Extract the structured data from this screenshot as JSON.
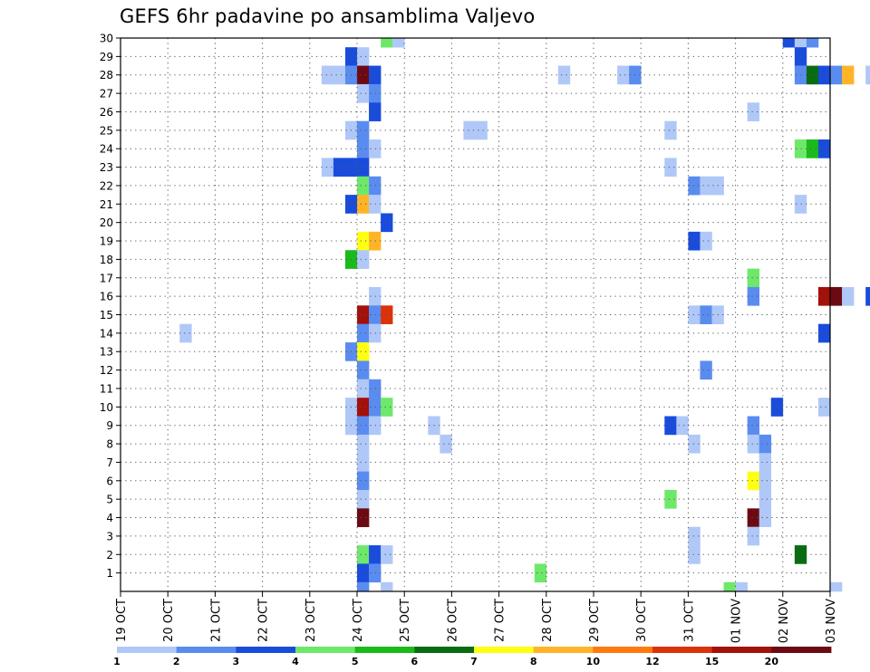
{
  "chart_data": {
    "type": "heatmap",
    "title": "GEFS 6hr padavine po ansamblima Valjevo",
    "xlabel": "",
    "ylabel": "",
    "x_ticks": [
      "19 OCT",
      "20 OCT",
      "21 OCT",
      "22 OCT",
      "23 OCT",
      "24 OCT",
      "25 OCT",
      "26 OCT",
      "27 OCT",
      "28 OCT",
      "29 OCT",
      "30 OCT",
      "31 OCT",
      "01 NOV",
      "02 NOV",
      "03 NOV"
    ],
    "y_ticks": [
      "1",
      "2",
      "3",
      "4",
      "5",
      "6",
      "7",
      "8",
      "9",
      "10",
      "11",
      "12",
      "13",
      "14",
      "15",
      "16",
      "17",
      "18",
      "19",
      "20",
      "21",
      "22",
      "23",
      "24",
      "25",
      "26",
      "27",
      "28",
      "29",
      "30"
    ],
    "ylim": [
      0,
      30
    ],
    "steps_per_day": 4,
    "grid": "dotted",
    "colorbar": {
      "tick_labels": [
        "1",
        "2",
        "3",
        "4",
        "5",
        "6",
        "7",
        "8",
        "10",
        "12",
        "15",
        "20"
      ],
      "colors": [
        "#b0c8f8",
        "#5a8cf0",
        "#1a4cdc",
        "#6ee86a",
        "#1aba1a",
        "#0a6c12",
        "#ffff14",
        "#ffb428",
        "#ff7a0c",
        "#dc320a",
        "#a4100a",
        "#6c0a14"
      ]
    },
    "cells": [
      [
        22,
        30,
        4
      ],
      [
        23,
        30,
        1
      ],
      [
        56,
        30,
        3
      ],
      [
        57,
        30,
        1
      ],
      [
        58,
        30,
        2
      ],
      [
        67,
        30,
        15
      ],
      [
        68,
        30,
        4
      ],
      [
        71,
        30,
        1
      ],
      [
        72,
        30,
        3
      ],
      [
        19,
        29,
        3
      ],
      [
        20,
        29,
        1
      ],
      [
        57,
        29,
        3
      ],
      [
        72,
        29,
        3
      ],
      [
        97,
        29,
        1
      ],
      [
        119,
        29,
        3
      ],
      [
        17,
        28,
        1
      ],
      [
        18,
        28,
        1
      ],
      [
        19,
        28,
        2
      ],
      [
        20,
        28,
        12
      ],
      [
        21,
        28,
        3
      ],
      [
        37,
        28,
        1
      ],
      [
        42,
        28,
        1
      ],
      [
        43,
        28,
        2
      ],
      [
        57,
        28,
        2
      ],
      [
        58,
        28,
        6
      ],
      [
        59,
        28,
        3
      ],
      [
        60,
        28,
        2
      ],
      [
        61,
        28,
        8
      ],
      [
        63,
        28,
        1
      ],
      [
        69,
        28,
        5
      ],
      [
        70,
        28,
        10
      ],
      [
        71,
        28,
        3
      ],
      [
        20,
        27,
        1
      ],
      [
        21,
        27,
        2
      ],
      [
        21,
        26,
        3
      ],
      [
        53,
        26,
        1
      ],
      [
        19,
        25,
        1
      ],
      [
        20,
        25,
        2
      ],
      [
        29,
        25,
        1
      ],
      [
        30,
        25,
        1
      ],
      [
        46,
        25,
        1
      ],
      [
        96,
        25,
        1
      ],
      [
        97,
        25,
        3
      ],
      [
        98,
        25,
        10
      ],
      [
        20,
        24,
        2
      ],
      [
        21,
        24,
        1
      ],
      [
        57,
        24,
        4
      ],
      [
        58,
        24,
        5
      ],
      [
        59,
        24,
        3
      ],
      [
        93,
        24,
        3
      ],
      [
        98,
        24,
        1
      ],
      [
        17,
        23,
        1
      ],
      [
        18,
        23,
        3
      ],
      [
        19,
        23,
        3
      ],
      [
        20,
        23,
        3
      ],
      [
        46,
        23,
        1
      ],
      [
        69,
        23,
        8
      ],
      [
        70,
        23,
        3
      ],
      [
        20,
        22,
        4
      ],
      [
        21,
        22,
        2
      ],
      [
        48,
        22,
        2
      ],
      [
        49,
        22,
        1
      ],
      [
        50,
        22,
        1
      ],
      [
        98,
        22,
        1
      ],
      [
        100,
        22,
        1
      ],
      [
        19,
        21,
        3
      ],
      [
        20,
        21,
        8
      ],
      [
        21,
        21,
        1
      ],
      [
        57,
        21,
        1
      ],
      [
        65,
        21,
        2
      ],
      [
        87,
        21,
        2
      ],
      [
        88,
        21,
        1
      ],
      [
        89,
        21,
        1
      ],
      [
        92,
        21,
        5
      ],
      [
        93,
        21,
        2
      ],
      [
        104,
        21,
        3
      ],
      [
        105,
        21,
        5
      ],
      [
        22,
        20,
        3
      ],
      [
        70,
        20,
        1
      ],
      [
        20,
        19,
        7
      ],
      [
        21,
        19,
        8
      ],
      [
        48,
        19,
        3
      ],
      [
        49,
        19,
        1
      ],
      [
        64,
        19,
        1
      ],
      [
        81,
        19,
        6
      ],
      [
        82,
        19,
        3
      ],
      [
        83,
        19,
        1
      ],
      [
        19,
        18,
        5
      ],
      [
        20,
        18,
        1
      ],
      [
        53,
        17,
        4
      ],
      [
        21,
        16,
        1
      ],
      [
        53,
        16,
        2
      ],
      [
        59,
        16,
        11
      ],
      [
        60,
        16,
        12
      ],
      [
        61,
        16,
        1
      ],
      [
        63,
        16,
        3
      ],
      [
        65,
        16,
        2
      ],
      [
        80,
        16,
        3
      ],
      [
        81,
        16,
        2
      ],
      [
        88,
        16,
        4
      ],
      [
        107,
        16,
        2
      ],
      [
        20,
        15,
        11
      ],
      [
        21,
        15,
        2
      ],
      [
        22,
        15,
        10
      ],
      [
        48,
        15,
        1
      ],
      [
        49,
        15,
        2
      ],
      [
        50,
        15,
        1
      ],
      [
        87,
        15,
        1
      ],
      [
        88,
        15,
        3
      ],
      [
        92,
        15,
        3
      ],
      [
        95,
        15,
        11
      ],
      [
        96,
        15,
        8
      ],
      [
        97,
        15,
        1
      ],
      [
        98,
        15,
        1
      ],
      [
        99,
        15,
        1
      ],
      [
        100,
        15,
        2
      ],
      [
        101,
        15,
        1
      ],
      [
        102,
        15,
        1
      ],
      [
        5,
        14,
        1
      ],
      [
        20,
        14,
        2
      ],
      [
        21,
        14,
        1
      ],
      [
        59,
        14,
        3
      ],
      [
        65,
        14,
        2
      ],
      [
        87,
        14,
        3
      ],
      [
        88,
        14,
        1
      ],
      [
        100,
        14,
        1
      ],
      [
        107,
        14,
        3
      ],
      [
        108,
        14,
        1
      ],
      [
        19,
        13,
        2
      ],
      [
        20,
        13,
        7
      ],
      [
        20,
        12,
        2
      ],
      [
        49,
        12,
        2
      ],
      [
        64,
        12,
        1
      ],
      [
        20,
        11,
        1
      ],
      [
        21,
        11,
        2
      ],
      [
        67,
        11,
        1
      ],
      [
        68,
        11,
        2
      ],
      [
        119,
        11,
        1
      ],
      [
        19,
        10,
        1
      ],
      [
        20,
        10,
        11
      ],
      [
        21,
        10,
        2
      ],
      [
        22,
        10,
        4
      ],
      [
        55,
        10,
        3
      ],
      [
        59,
        10,
        1
      ],
      [
        80,
        10,
        6
      ],
      [
        118,
        10,
        2
      ],
      [
        19,
        9,
        1
      ],
      [
        20,
        9,
        2
      ],
      [
        21,
        9,
        1
      ],
      [
        26,
        9,
        1
      ],
      [
        46,
        9,
        3
      ],
      [
        47,
        9,
        1
      ],
      [
        53,
        9,
        2
      ],
      [
        67,
        9,
        1
      ],
      [
        81,
        9,
        2
      ],
      [
        85,
        9,
        3
      ],
      [
        86,
        9,
        1
      ],
      [
        99,
        9,
        2
      ],
      [
        100,
        9,
        1
      ],
      [
        20,
        8,
        1
      ],
      [
        27,
        8,
        1
      ],
      [
        48,
        8,
        1
      ],
      [
        53,
        8,
        1
      ],
      [
        54,
        8,
        2
      ],
      [
        66,
        8,
        9
      ],
      [
        93,
        8,
        1
      ],
      [
        94,
        8,
        1
      ],
      [
        95,
        8,
        1
      ],
      [
        20,
        7,
        1
      ],
      [
        54,
        7,
        1
      ],
      [
        20,
        6,
        2
      ],
      [
        53,
        6,
        7
      ],
      [
        54,
        6,
        1
      ],
      [
        81,
        6,
        1
      ],
      [
        82,
        6,
        1
      ],
      [
        93,
        6,
        6
      ],
      [
        101,
        6,
        4
      ],
      [
        103,
        6,
        1
      ],
      [
        104,
        6,
        2
      ],
      [
        20,
        5,
        1
      ],
      [
        46,
        5,
        4
      ],
      [
        54,
        5,
        1
      ],
      [
        99,
        5,
        1
      ],
      [
        100,
        5,
        1
      ],
      [
        101,
        5,
        1
      ],
      [
        102,
        5,
        1
      ],
      [
        103,
        5,
        2
      ],
      [
        106,
        5,
        2
      ],
      [
        20,
        4,
        12
      ],
      [
        53,
        4,
        12
      ],
      [
        54,
        4,
        1
      ],
      [
        67,
        4,
        12
      ],
      [
        68,
        4,
        5
      ],
      [
        91,
        4,
        1
      ],
      [
        92,
        4,
        4
      ],
      [
        99,
        4,
        1
      ],
      [
        100,
        4,
        3
      ],
      [
        101,
        4,
        1
      ],
      [
        48,
        3,
        1
      ],
      [
        53,
        3,
        1
      ],
      [
        92,
        3,
        2
      ],
      [
        94,
        3,
        7
      ],
      [
        20,
        2,
        4
      ],
      [
        21,
        2,
        3
      ],
      [
        22,
        2,
        1
      ],
      [
        48,
        2,
        1
      ],
      [
        57,
        2,
        6
      ],
      [
        65,
        2,
        2
      ],
      [
        66,
        2,
        2
      ],
      [
        67,
        2,
        2
      ],
      [
        68,
        2,
        1
      ],
      [
        72,
        2,
        1
      ],
      [
        94,
        2,
        12
      ],
      [
        95,
        2,
        1
      ],
      [
        98,
        2,
        3
      ],
      [
        20,
        1,
        3
      ],
      [
        21,
        1,
        2
      ],
      [
        35,
        1,
        4
      ],
      [
        71,
        1,
        2
      ],
      [
        72,
        1,
        5
      ],
      [
        100,
        1,
        1
      ],
      [
        20,
        0,
        2
      ],
      [
        22,
        0,
        1
      ],
      [
        51,
        0,
        4
      ],
      [
        52,
        0,
        1
      ],
      [
        60,
        0,
        1
      ],
      [
        65,
        0,
        1
      ],
      [
        66,
        0,
        3
      ],
      [
        67,
        0,
        3
      ],
      [
        105,
        0,
        4
      ],
      [
        106,
        0,
        2
      ]
    ]
  }
}
